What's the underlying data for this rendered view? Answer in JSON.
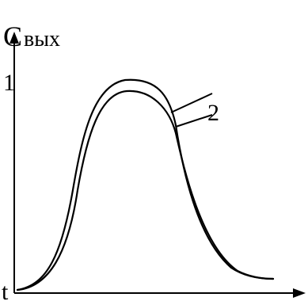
{
  "labels": {
    "y_axis_main": "С",
    "y_axis_sub": "вых",
    "y_tick": "1",
    "origin": "t",
    "curve_marker": "2"
  },
  "colors": {
    "ink": "#000000",
    "background": "#ffffff"
  }
}
